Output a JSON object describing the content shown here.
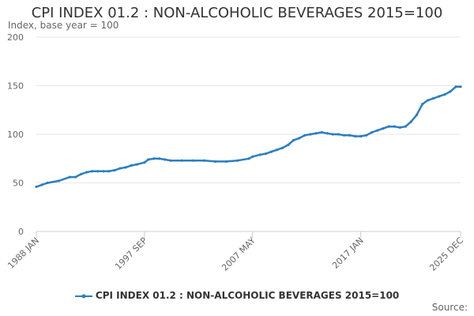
{
  "chart_data": {
    "type": "line",
    "title": "CPI INDEX 01.2 : NON-ALCOHOLIC BEVERAGES 2015=100",
    "subtitle": "Index, base year = 100",
    "xlabel": "",
    "ylabel": "Index, base year = 100",
    "ylim": [
      0,
      200
    ],
    "yticks": [
      0,
      50,
      100,
      150,
      200
    ],
    "xlim": [
      1988.0,
      2025.92
    ],
    "xtick_labels": [
      {
        "label": "1988 JAN",
        "x": 1988.0
      },
      {
        "label": "1997 SEP",
        "x": 1997.67
      },
      {
        "label": "2007 MAY",
        "x": 2007.33
      },
      {
        "label": "2017 JAN",
        "x": 2017.0
      },
      {
        "label": "2025 DEC",
        "x": 2025.92
      }
    ],
    "series": [
      {
        "name": "CPI INDEX 01.2 : NON-ALCOHOLIC BEVERAGES 2015=100",
        "color": "#2b7ec1",
        "x": [
          1988.0,
          1988.5,
          1989.0,
          1990.0,
          1991.0,
          1991.5,
          1992.0,
          1992.5,
          1993.0,
          1993.5,
          1994.0,
          1994.5,
          1995.0,
          1995.5,
          1996.0,
          1996.5,
          1997.0,
          1997.67,
          1998.0,
          1998.5,
          1999.0,
          1999.5,
          2000.0,
          2001.0,
          2002.0,
          2003.0,
          2004.0,
          2005.0,
          2006.0,
          2007.0,
          2007.33,
          2008.0,
          2008.5,
          2009.0,
          2009.5,
          2010.0,
          2010.5,
          2011.0,
          2011.5,
          2012.0,
          2012.5,
          2013.0,
          2013.5,
          2014.0,
          2014.5,
          2015.0,
          2015.5,
          2016.0,
          2016.5,
          2017.0,
          2017.5,
          2018.0,
          2018.5,
          2019.0,
          2019.5,
          2020.0,
          2020.5,
          2021.0,
          2021.5,
          2022.0,
          2022.5,
          2023.0,
          2023.5,
          2024.0,
          2024.5,
          2025.0,
          2025.5,
          2025.92
        ],
        "values": [
          46,
          48,
          50,
          52,
          56,
          56,
          59,
          61,
          62,
          62,
          62,
          62,
          63,
          65,
          66,
          68,
          69,
          71,
          74,
          75,
          75,
          74,
          73,
          73,
          73,
          73,
          72,
          72,
          73,
          75,
          77,
          79,
          80,
          82,
          84,
          86,
          89,
          94,
          96,
          99,
          100,
          101,
          102,
          101,
          100,
          100,
          99,
          99,
          98,
          98,
          99,
          102,
          104,
          106,
          108,
          108,
          107,
          108,
          113,
          120,
          131,
          135,
          137,
          139,
          141,
          144,
          149,
          149
        ]
      }
    ]
  },
  "legend": {
    "label": "CPI INDEX 01.2 : NON-ALCOHOLIC BEVERAGES 2015=100"
  },
  "source": {
    "label": "Source:"
  }
}
